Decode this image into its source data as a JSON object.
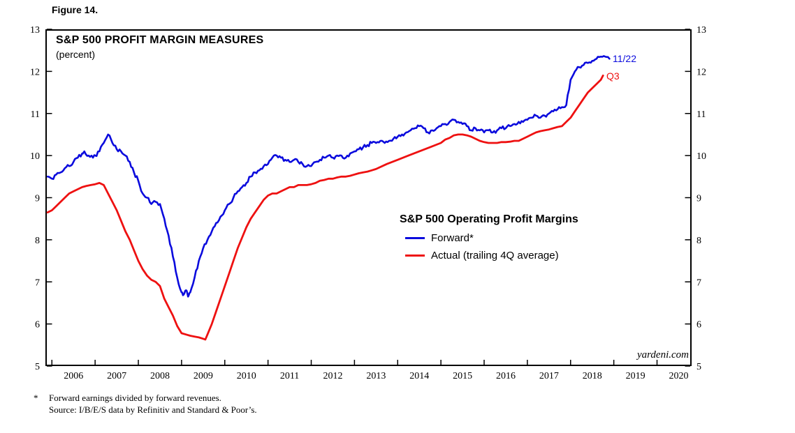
{
  "figure_label": "Figure 14.",
  "titles": {
    "title": "S&P 500 PROFIT MARGIN MEASURES",
    "subtitle": "(percent)"
  },
  "watermark": "yardeni.com",
  "legend": {
    "title": "S&P 500 Operating Profit Margins"
  },
  "footnotes": {
    "marker": "*",
    "line1": "Forward earnings divided by forward revenues.",
    "line2": "Source: I/B/E/S data by Refinitiv and Standard & Poor’s."
  },
  "chart_data": {
    "type": "line",
    "title": "S&P 500 PROFIT MARGIN MEASURES",
    "subtitle": "(percent)",
    "ylabel": "percent",
    "xlabel": "",
    "grid": false,
    "legend_position": "center-right",
    "ylim": [
      5,
      13
    ],
    "yticks": [
      5,
      6,
      7,
      8,
      9,
      10,
      11,
      12,
      13
    ],
    "yticks_both_sides": true,
    "xlim": [
      2005.85,
      2020.8
    ],
    "xticks": [
      2006,
      2007,
      2008,
      2009,
      2010,
      2011,
      2012,
      2013,
      2014,
      2015,
      2016,
      2017,
      2018,
      2019,
      2020
    ],
    "xticklabels_centered_midyear": true,
    "series": [
      {
        "id": "forward",
        "name": "Forward*",
        "color": "#0b0bdd",
        "width": 2.6,
        "noisy": true,
        "end_label": "11/22",
        "x": [
          2005.9,
          2006.0,
          2006.1,
          2006.2,
          2006.3,
          2006.4,
          2006.5,
          2006.6,
          2006.7,
          2006.75,
          2006.85,
          2006.95,
          2007.0,
          2007.1,
          2007.2,
          2007.3,
          2007.4,
          2007.5,
          2007.6,
          2007.7,
          2007.8,
          2007.9,
          2008.0,
          2008.1,
          2008.2,
          2008.3,
          2008.4,
          2008.5,
          2008.6,
          2008.7,
          2008.8,
          2008.9,
          2009.0,
          2009.05,
          2009.1,
          2009.15,
          2009.2,
          2009.3,
          2009.4,
          2009.5,
          2009.6,
          2009.7,
          2009.8,
          2009.9,
          2010.0,
          2010.1,
          2010.2,
          2010.3,
          2010.4,
          2010.5,
          2010.6,
          2010.7,
          2010.8,
          2010.9,
          2011.0,
          2011.1,
          2011.2,
          2011.3,
          2011.4,
          2011.5,
          2011.6,
          2011.7,
          2011.8,
          2011.9,
          2012.0,
          2012.1,
          2012.2,
          2012.3,
          2012.4,
          2012.5,
          2012.6,
          2012.7,
          2012.8,
          2012.9,
          2013.0,
          2013.1,
          2013.2,
          2013.3,
          2013.4,
          2013.5,
          2013.6,
          2013.7,
          2013.8,
          2013.9,
          2014.0,
          2014.1,
          2014.2,
          2014.3,
          2014.4,
          2014.5,
          2014.6,
          2014.7,
          2014.8,
          2014.9,
          2015.0,
          2015.1,
          2015.2,
          2015.3,
          2015.4,
          2015.5,
          2015.6,
          2015.7,
          2015.8,
          2015.9,
          2016.0,
          2016.1,
          2016.2,
          2016.3,
          2016.4,
          2016.5,
          2016.6,
          2016.7,
          2016.8,
          2016.9,
          2017.0,
          2017.1,
          2017.2,
          2017.3,
          2017.4,
          2017.5,
          2017.6,
          2017.7,
          2017.8,
          2017.9,
          2018.0,
          2018.1,
          2018.2,
          2018.3,
          2018.4,
          2018.5,
          2018.6,
          2018.7,
          2018.8,
          2018.9
        ],
        "y": [
          9.5,
          9.45,
          9.55,
          9.6,
          9.7,
          9.75,
          9.85,
          9.95,
          10.05,
          10.1,
          10.0,
          9.95,
          10.0,
          10.1,
          10.3,
          10.5,
          10.3,
          10.15,
          10.1,
          10.0,
          9.85,
          9.6,
          9.4,
          9.1,
          9.0,
          8.85,
          8.9,
          8.85,
          8.5,
          8.1,
          7.6,
          7.1,
          6.75,
          6.7,
          6.8,
          6.65,
          6.75,
          7.1,
          7.5,
          7.8,
          8.0,
          8.2,
          8.4,
          8.55,
          8.7,
          8.85,
          9.0,
          9.15,
          9.25,
          9.35,
          9.5,
          9.6,
          9.65,
          9.75,
          9.8,
          9.95,
          10.0,
          9.95,
          9.9,
          9.85,
          9.9,
          9.85,
          9.8,
          9.75,
          9.75,
          9.85,
          9.9,
          9.95,
          10.0,
          9.95,
          10.0,
          10.0,
          9.95,
          10.05,
          10.1,
          10.15,
          10.2,
          10.25,
          10.3,
          10.3,
          10.35,
          10.3,
          10.35,
          10.4,
          10.45,
          10.5,
          10.55,
          10.6,
          10.65,
          10.7,
          10.65,
          10.55,
          10.6,
          10.65,
          10.7,
          10.75,
          10.8,
          10.85,
          10.8,
          10.75,
          10.7,
          10.6,
          10.65,
          10.6,
          10.55,
          10.6,
          10.55,
          10.6,
          10.65,
          10.65,
          10.7,
          10.75,
          10.8,
          10.8,
          10.85,
          10.9,
          10.95,
          10.9,
          10.95,
          11.0,
          11.05,
          11.1,
          11.15,
          11.2,
          11.8,
          12.0,
          12.1,
          12.15,
          12.2,
          12.25,
          12.3,
          12.35,
          12.35,
          12.3
        ]
      },
      {
        "id": "actual",
        "name": "Actual (trailing 4Q average)",
        "color": "#ee1111",
        "width": 2.8,
        "noisy": false,
        "end_label": "Q3",
        "x": [
          2005.9,
          2006.0,
          2006.1,
          2006.2,
          2006.3,
          2006.4,
          2006.5,
          2006.6,
          2006.7,
          2006.8,
          2006.9,
          2007.0,
          2007.1,
          2007.2,
          2007.3,
          2007.4,
          2007.5,
          2007.6,
          2007.7,
          2007.8,
          2007.9,
          2008.0,
          2008.1,
          2008.2,
          2008.3,
          2008.4,
          2008.5,
          2008.6,
          2008.7,
          2008.8,
          2008.9,
          2009.0,
          2009.1,
          2009.2,
          2009.3,
          2009.4,
          2009.5,
          2009.55,
          2009.6,
          2009.7,
          2009.8,
          2009.9,
          2010.0,
          2010.1,
          2010.2,
          2010.3,
          2010.4,
          2010.5,
          2010.6,
          2010.7,
          2010.8,
          2010.9,
          2011.0,
          2011.1,
          2011.2,
          2011.3,
          2011.4,
          2011.5,
          2011.6,
          2011.7,
          2011.8,
          2011.9,
          2012.0,
          2012.1,
          2012.2,
          2012.3,
          2012.4,
          2012.5,
          2012.6,
          2012.7,
          2012.8,
          2012.9,
          2013.0,
          2013.1,
          2013.2,
          2013.3,
          2013.4,
          2013.5,
          2013.75,
          2014.0,
          2014.25,
          2014.5,
          2014.75,
          2015.0,
          2015.1,
          2015.2,
          2015.3,
          2015.4,
          2015.5,
          2015.6,
          2015.7,
          2015.8,
          2015.9,
          2016.0,
          2016.1,
          2016.2,
          2016.3,
          2016.4,
          2016.5,
          2016.6,
          2016.7,
          2016.8,
          2016.9,
          2017.0,
          2017.1,
          2017.2,
          2017.3,
          2017.4,
          2017.5,
          2017.6,
          2017.7,
          2017.8,
          2017.9,
          2018.0,
          2018.1,
          2018.2,
          2018.3,
          2018.4,
          2018.5,
          2018.6,
          2018.7,
          2018.75
        ],
        "y": [
          8.65,
          8.7,
          8.8,
          8.9,
          9.0,
          9.1,
          9.15,
          9.2,
          9.25,
          9.28,
          9.3,
          9.32,
          9.35,
          9.3,
          9.1,
          8.9,
          8.7,
          8.45,
          8.2,
          8.0,
          7.75,
          7.5,
          7.3,
          7.15,
          7.05,
          7.0,
          6.9,
          6.6,
          6.4,
          6.2,
          5.95,
          5.78,
          5.75,
          5.72,
          5.7,
          5.68,
          5.65,
          5.63,
          5.75,
          6.0,
          6.3,
          6.6,
          6.9,
          7.2,
          7.5,
          7.8,
          8.05,
          8.3,
          8.5,
          8.65,
          8.8,
          8.95,
          9.05,
          9.1,
          9.1,
          9.15,
          9.2,
          9.25,
          9.25,
          9.3,
          9.3,
          9.3,
          9.32,
          9.35,
          9.4,
          9.42,
          9.45,
          9.45,
          9.48,
          9.5,
          9.5,
          9.52,
          9.55,
          9.58,
          9.6,
          9.62,
          9.65,
          9.68,
          9.8,
          9.9,
          10.0,
          10.1,
          10.2,
          10.3,
          10.38,
          10.42,
          10.48,
          10.5,
          10.5,
          10.48,
          10.45,
          10.4,
          10.35,
          10.32,
          10.3,
          10.3,
          10.3,
          10.32,
          10.32,
          10.33,
          10.35,
          10.35,
          10.4,
          10.45,
          10.5,
          10.55,
          10.58,
          10.6,
          10.62,
          10.65,
          10.68,
          10.7,
          10.8,
          10.9,
          11.05,
          11.2,
          11.35,
          11.5,
          11.6,
          11.7,
          11.8,
          11.9
        ]
      }
    ]
  }
}
